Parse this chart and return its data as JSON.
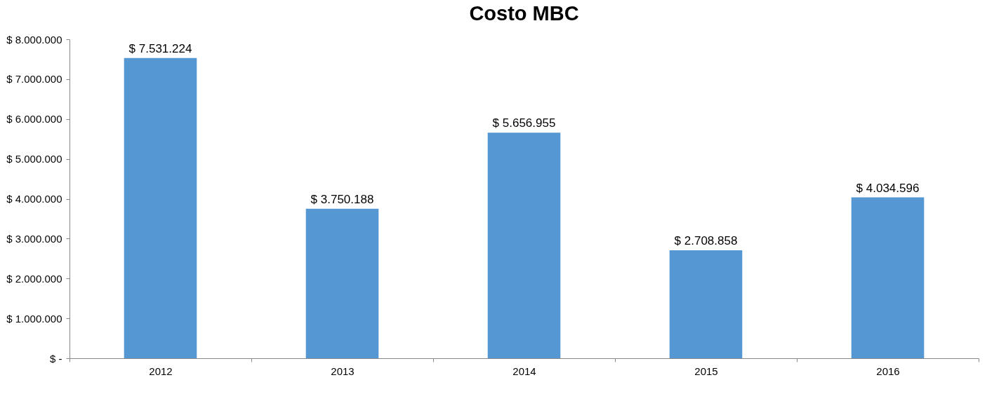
{
  "chart_data": {
    "type": "bar",
    "title": "Costo MBC",
    "categories": [
      "2012",
      "2013",
      "2014",
      "2015",
      "2016"
    ],
    "values": [
      7531224,
      3750188,
      5656955,
      2708858,
      4034596
    ],
    "value_labels": [
      "$ 7.531.224",
      "$ 3.750.188",
      "$ 5.656.955",
      "$ 2.708.858",
      "$ 4.034.596"
    ],
    "color": "#5597d3",
    "ylim": [
      0,
      8000000
    ],
    "yticks": [
      {
        "value": 0,
        "label": "$ -"
      },
      {
        "value": 1000000,
        "label": "$ 1.000.000"
      },
      {
        "value": 2000000,
        "label": "$ 2.000.000"
      },
      {
        "value": 3000000,
        "label": "$ 3.000.000"
      },
      {
        "value": 4000000,
        "label": "$ 4.000.000"
      },
      {
        "value": 5000000,
        "label": "$ 5.000.000"
      },
      {
        "value": 6000000,
        "label": "$ 6.000.000"
      },
      {
        "value": 7000000,
        "label": "$ 7.000.000"
      },
      {
        "value": 8000000,
        "label": "$ 8.000.000"
      }
    ],
    "grid": false
  }
}
